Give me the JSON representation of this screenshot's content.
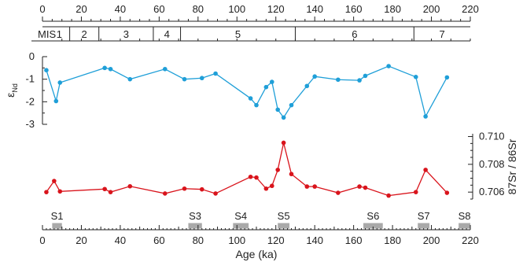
{
  "chart_data": {
    "type": "line",
    "x_axis": {
      "label": "Age (ka)",
      "range": [
        0,
        220
      ],
      "ticks": [
        0,
        20,
        40,
        60,
        80,
        100,
        120,
        140,
        160,
        180,
        200,
        220
      ]
    },
    "mis": {
      "label": "MIS",
      "boundaries": [
        0,
        14,
        29,
        57,
        71,
        130,
        191,
        220
      ],
      "stages": [
        "1",
        "2",
        "3",
        "4",
        "5",
        "6",
        "7"
      ]
    },
    "series": [
      {
        "name": "εNd",
        "axis_label": "ε",
        "axis_label_sub": "Nd",
        "color": "#1f9fd8",
        "ylim": [
          -3,
          0
        ],
        "yticks": [
          0,
          -1,
          -2,
          -3
        ],
        "ytick_labels": [
          "0",
          "-1",
          "-2",
          "-3"
        ],
        "points": [
          [
            2,
            -0.6
          ],
          [
            7,
            -1.97
          ],
          [
            9,
            -1.15
          ],
          [
            32,
            -0.5
          ],
          [
            35,
            -0.55
          ],
          [
            45,
            -1.0
          ],
          [
            63,
            -0.55
          ],
          [
            73,
            -1.0
          ],
          [
            82,
            -0.95
          ],
          [
            89,
            -0.75
          ],
          [
            107,
            -1.85
          ],
          [
            110,
            -2.15
          ],
          [
            115,
            -1.35
          ],
          [
            118,
            -1.12
          ],
          [
            121,
            -2.35
          ],
          [
            124,
            -2.7
          ],
          [
            128,
            -2.15
          ],
          [
            136,
            -1.3
          ],
          [
            140,
            -0.88
          ],
          [
            152,
            -1.02
          ],
          [
            163,
            -1.05
          ],
          [
            166,
            -0.85
          ],
          [
            178,
            -0.42
          ],
          [
            192,
            -0.9
          ],
          [
            197,
            -2.65
          ],
          [
            208,
            -0.92
          ]
        ]
      },
      {
        "name": "87Sr/86Sr",
        "axis_label": "87Sr / 86Sr",
        "color": "#d9141c",
        "ylim": [
          0.7055,
          0.7102
        ],
        "yticks": [
          0.706,
          0.708,
          0.71
        ],
        "ytick_labels": [
          "0.706",
          "0.708",
          "0.710"
        ],
        "points": [
          [
            2,
            0.706
          ],
          [
            6,
            0.7068
          ],
          [
            9,
            0.70605
          ],
          [
            32,
            0.70622
          ],
          [
            35,
            0.706
          ],
          [
            45,
            0.70642
          ],
          [
            63,
            0.7059
          ],
          [
            73,
            0.70625
          ],
          [
            82,
            0.7062
          ],
          [
            89,
            0.7059
          ],
          [
            107,
            0.7071
          ],
          [
            110,
            0.70705
          ],
          [
            115,
            0.70625
          ],
          [
            118,
            0.70645
          ],
          [
            121,
            0.7076
          ],
          [
            124,
            0.70955
          ],
          [
            128,
            0.7073
          ],
          [
            136,
            0.7064
          ],
          [
            140,
            0.7064
          ],
          [
            152,
            0.70595
          ],
          [
            163,
            0.7064
          ],
          [
            166,
            0.70632
          ],
          [
            178,
            0.70575
          ],
          [
            192,
            0.706
          ],
          [
            197,
            0.7076
          ],
          [
            208,
            0.70595
          ]
        ]
      }
    ],
    "sapropels": {
      "color": "#a9a9a9",
      "items": [
        {
          "label": "S1",
          "start": 5,
          "end": 10
        },
        {
          "label": "S3",
          "start": 75,
          "end": 82
        },
        {
          "label": "S4",
          "start": 98,
          "end": 106
        },
        {
          "label": "S5",
          "start": 121,
          "end": 127
        },
        {
          "label": "S6",
          "start": 165,
          "end": 175
        },
        {
          "label": "S7",
          "start": 193,
          "end": 199
        },
        {
          "label": "S8",
          "start": 214,
          "end": 220
        }
      ]
    }
  }
}
